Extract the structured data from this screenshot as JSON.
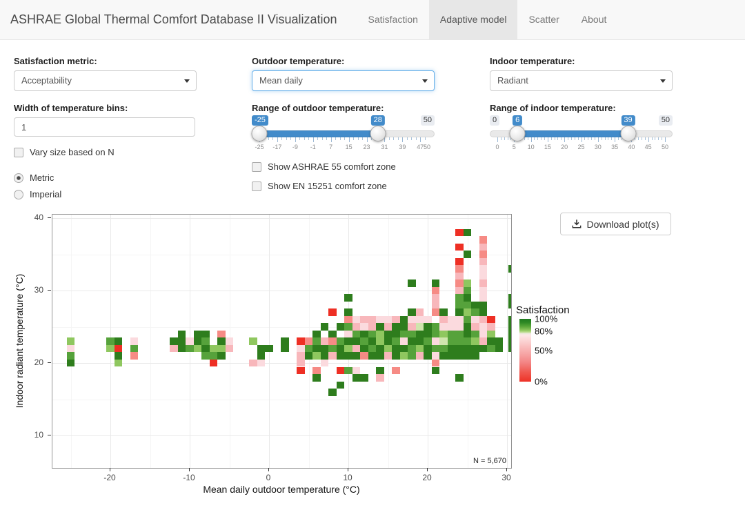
{
  "theme": {
    "accent": "#428bca",
    "navbar_bg": "#f8f8f8",
    "active_tab_bg": "#e7e7e7"
  },
  "navbar": {
    "brand": "ASHRAE Global Thermal Comfort Database II Visualization",
    "tabs": [
      {
        "label": "Satisfaction",
        "active": false
      },
      {
        "label": "Adaptive model",
        "active": true
      },
      {
        "label": "Scatter",
        "active": false
      },
      {
        "label": "About",
        "active": false
      }
    ]
  },
  "controls": {
    "satisfaction_metric": {
      "label": "Satisfaction metric:",
      "value": "Acceptability"
    },
    "bin_width": {
      "label": "Width of temperature bins:",
      "value": "1"
    },
    "vary_size": {
      "label": "Vary size based on N",
      "checked": false
    },
    "units": {
      "options": [
        {
          "label": "Metric",
          "selected": true
        },
        {
          "label": "Imperial",
          "selected": false
        }
      ]
    },
    "outdoor_temp": {
      "label": "Outdoor temperature:",
      "value": "Mean daily",
      "focused": true
    },
    "outdoor_range": {
      "label": "Range of outdoor temperature:",
      "min": -25,
      "max": 50,
      "from": -25,
      "to": 28,
      "tick_labels": [
        -25,
        -17,
        -9,
        -1,
        7,
        15,
        23,
        31,
        39,
        47,
        50
      ],
      "minor_step": 2,
      "badges": [
        {
          "text": "-25",
          "type": "from",
          "value": -25
        },
        {
          "text": "28",
          "type": "from",
          "value": 28
        },
        {
          "text": "50",
          "type": "minmax",
          "value": 50
        }
      ]
    },
    "ashrae_zone": {
      "label": "Show ASHRAE 55 comfort zone",
      "checked": false
    },
    "en_zone": {
      "label": "Show EN 15251 comfort zone",
      "checked": false
    },
    "indoor_temp": {
      "label": "Indoor temperature:",
      "value": "Radiant",
      "focused": false
    },
    "indoor_range": {
      "label": "Range of indoor temperature:",
      "min": 0,
      "max": 50,
      "from": 6,
      "to": 39,
      "tick_labels": [
        0,
        5,
        10,
        15,
        20,
        25,
        30,
        35,
        40,
        45,
        50
      ],
      "minor_step": 1,
      "badges": [
        {
          "text": "0",
          "type": "minmax",
          "value": 0
        },
        {
          "text": "6",
          "type": "from",
          "value": 6
        },
        {
          "text": "39",
          "type": "from",
          "value": 39
        },
        {
          "text": "50",
          "type": "minmax",
          "value": 50
        }
      ]
    }
  },
  "download_button": {
    "label": "Download plot(s)"
  },
  "plot": {
    "n_label": "N = 5,670"
  },
  "chart_data": {
    "type": "heatmap",
    "xlabel": "Mean daily outdoor temperature (°C)",
    "ylabel": "Indoor radiant temperature (°C)",
    "xlim": [
      -27.3,
      30.5
    ],
    "ylim": [
      5.5,
      40.5
    ],
    "x_ticks": [
      -20,
      -10,
      0,
      10,
      20,
      30
    ],
    "y_ticks": [
      40,
      30,
      20,
      10
    ],
    "x_minor": [
      -25,
      -15,
      -5,
      5,
      15,
      25
    ],
    "y_minor": [
      15,
      25,
      35
    ],
    "bin_width_c": 1,
    "n_total": "5,670",
    "legend": {
      "title": "Satisfaction",
      "stops": [
        {
          "label": "100%",
          "pos": 0.0
        },
        {
          "label": "80%",
          "pos": 0.2
        },
        {
          "label": "50%",
          "pos": 0.51
        },
        {
          "label": "0%",
          "pos": 1.0
        }
      ]
    },
    "color_map": {
      "dg": "#2e7d1d",
      "g": "#56a23b",
      "lg": "#8fc75f",
      "vlg": "#cfe5ad",
      "pp": "#fbdade",
      "pk": "#f8b7bb",
      "sal": "#f68b85",
      "red": "#ee2f24"
    },
    "color_meaning": {
      "dg": "~100% satisfaction",
      "g": "~90%",
      "lg": "~80%",
      "vlg": "~78%",
      "pp": "~70%",
      "pk": "~55%",
      "sal": "~30%",
      "red": "~0%"
    },
    "tiles": [
      [
        -25,
        23,
        "lg"
      ],
      [
        -25,
        22,
        "pp"
      ],
      [
        -25,
        21,
        "g"
      ],
      [
        -25,
        20,
        "dg"
      ],
      [
        -20,
        23,
        "g"
      ],
      [
        -20,
        22,
        "lg"
      ],
      [
        -19,
        23,
        "dg"
      ],
      [
        -19,
        22,
        "red"
      ],
      [
        -19,
        21,
        "dg"
      ],
      [
        -19,
        20,
        "lg"
      ],
      [
        -17,
        23,
        "pp"
      ],
      [
        -17,
        22,
        "g"
      ],
      [
        -17,
        21,
        "sal"
      ],
      [
        -12,
        23,
        "dg"
      ],
      [
        -12,
        22,
        "pk"
      ],
      [
        -11,
        24,
        "dg"
      ],
      [
        -11,
        23,
        "dg"
      ],
      [
        -11,
        22,
        "dg"
      ],
      [
        -10,
        23,
        "pp"
      ],
      [
        -10,
        22,
        "g"
      ],
      [
        -9,
        24,
        "dg"
      ],
      [
        -9,
        23,
        "dg"
      ],
      [
        -9,
        22,
        "lg"
      ],
      [
        -8,
        24,
        "dg"
      ],
      [
        -8,
        23,
        "g"
      ],
      [
        -8,
        22,
        "dg"
      ],
      [
        -8,
        21,
        "g"
      ],
      [
        -7,
        22,
        "lg"
      ],
      [
        -7,
        21,
        "g"
      ],
      [
        -7,
        20,
        "red"
      ],
      [
        -6,
        24,
        "sal"
      ],
      [
        -6,
        23,
        "dg"
      ],
      [
        -6,
        22,
        "lg"
      ],
      [
        -6,
        21,
        "dg"
      ],
      [
        -5,
        23,
        "pp"
      ],
      [
        -5,
        22,
        "pk"
      ],
      [
        -2,
        23,
        "lg"
      ],
      [
        -2,
        20,
        "pk"
      ],
      [
        -1,
        22,
        "dg"
      ],
      [
        -1,
        21,
        "dg"
      ],
      [
        -1,
        20,
        "pp"
      ],
      [
        0,
        22,
        "dg"
      ],
      [
        2,
        23,
        "dg"
      ],
      [
        2,
        22,
        "dg"
      ],
      [
        4,
        23,
        "red"
      ],
      [
        4,
        22,
        "pp"
      ],
      [
        4,
        21,
        "pk"
      ],
      [
        4,
        20,
        "pk"
      ],
      [
        4,
        19,
        "red"
      ],
      [
        5,
        23,
        "sal"
      ],
      [
        5,
        22,
        "g"
      ],
      [
        5,
        21,
        "dg"
      ],
      [
        6,
        24,
        "dg"
      ],
      [
        6,
        23,
        "g"
      ],
      [
        6,
        22,
        "dg"
      ],
      [
        6,
        21,
        "lg"
      ],
      [
        6,
        19,
        "sal"
      ],
      [
        6,
        18,
        "dg"
      ],
      [
        7,
        25,
        "dg"
      ],
      [
        7,
        23,
        "pk"
      ],
      [
        7,
        22,
        "dg"
      ],
      [
        7,
        21,
        "dg"
      ],
      [
        7,
        20,
        "pp"
      ],
      [
        8,
        27,
        "red"
      ],
      [
        8,
        24,
        "dg"
      ],
      [
        8,
        23,
        "sal"
      ],
      [
        8,
        22,
        "g"
      ],
      [
        8,
        21,
        "pk"
      ],
      [
        8,
        16,
        "dg"
      ],
      [
        9,
        25,
        "dg"
      ],
      [
        9,
        23,
        "g"
      ],
      [
        9,
        22,
        "dg"
      ],
      [
        9,
        21,
        "dg"
      ],
      [
        9,
        19,
        "red"
      ],
      [
        9,
        17,
        "dg"
      ],
      [
        10,
        29,
        "dg"
      ],
      [
        10,
        27,
        "dg"
      ],
      [
        10,
        26,
        "sal"
      ],
      [
        10,
        25,
        "g"
      ],
      [
        10,
        24,
        "pp"
      ],
      [
        10,
        23,
        "dg"
      ],
      [
        10,
        22,
        "lg"
      ],
      [
        10,
        21,
        "dg"
      ],
      [
        10,
        19,
        "g"
      ],
      [
        11,
        26,
        "pp"
      ],
      [
        11,
        25,
        "pk"
      ],
      [
        11,
        24,
        "g"
      ],
      [
        11,
        23,
        "dg"
      ],
      [
        11,
        22,
        "pk"
      ],
      [
        11,
        21,
        "dg"
      ],
      [
        11,
        19,
        "pp"
      ],
      [
        11,
        18,
        "dg"
      ],
      [
        12,
        26,
        "pk"
      ],
      [
        12,
        25,
        "pp"
      ],
      [
        12,
        24,
        "dg"
      ],
      [
        12,
        23,
        "g"
      ],
      [
        12,
        22,
        "dg"
      ],
      [
        12,
        21,
        "sal"
      ],
      [
        12,
        18,
        "dg"
      ],
      [
        13,
        26,
        "pk"
      ],
      [
        13,
        25,
        "pk"
      ],
      [
        13,
        24,
        "g"
      ],
      [
        13,
        23,
        "dg"
      ],
      [
        13,
        22,
        "g"
      ],
      [
        13,
        21,
        "dg"
      ],
      [
        14,
        26,
        "pp"
      ],
      [
        14,
        25,
        "dg"
      ],
      [
        14,
        24,
        "lg"
      ],
      [
        14,
        23,
        "lg"
      ],
      [
        14,
        22,
        "dg"
      ],
      [
        14,
        21,
        "dg"
      ],
      [
        14,
        19,
        "dg"
      ],
      [
        14,
        18,
        "pk"
      ],
      [
        15,
        26,
        "pp"
      ],
      [
        15,
        25,
        "pk"
      ],
      [
        15,
        24,
        "dg"
      ],
      [
        15,
        23,
        "dg"
      ],
      [
        15,
        22,
        "lg"
      ],
      [
        15,
        21,
        "pk"
      ],
      [
        16,
        26,
        "pk"
      ],
      [
        16,
        25,
        "dg"
      ],
      [
        16,
        24,
        "dg"
      ],
      [
        16,
        23,
        "g"
      ],
      [
        16,
        22,
        "dg"
      ],
      [
        16,
        21,
        "dg"
      ],
      [
        16,
        19,
        "sal"
      ],
      [
        17,
        26,
        "dg"
      ],
      [
        17,
        25,
        "dg"
      ],
      [
        17,
        24,
        "g"
      ],
      [
        17,
        23,
        "pp"
      ],
      [
        17,
        22,
        "dg"
      ],
      [
        17,
        21,
        "lg"
      ],
      [
        18,
        31,
        "dg"
      ],
      [
        18,
        27,
        "dg"
      ],
      [
        18,
        26,
        "pp"
      ],
      [
        18,
        25,
        "pk"
      ],
      [
        18,
        24,
        "g"
      ],
      [
        18,
        23,
        "dg"
      ],
      [
        18,
        22,
        "g"
      ],
      [
        18,
        21,
        "g"
      ],
      [
        19,
        27,
        "pk"
      ],
      [
        19,
        26,
        "pp"
      ],
      [
        19,
        25,
        "vlg"
      ],
      [
        19,
        24,
        "dg"
      ],
      [
        19,
        23,
        "dg"
      ],
      [
        19,
        22,
        "lg"
      ],
      [
        19,
        21,
        "pk"
      ],
      [
        20,
        26,
        "pp"
      ],
      [
        20,
        25,
        "dg"
      ],
      [
        20,
        24,
        "dg"
      ],
      [
        20,
        23,
        "g"
      ],
      [
        20,
        22,
        "dg"
      ],
      [
        20,
        21,
        "dg"
      ],
      [
        21,
        31,
        "dg"
      ],
      [
        21,
        30,
        "sal"
      ],
      [
        21,
        29,
        "pk"
      ],
      [
        21,
        28,
        "pk"
      ],
      [
        21,
        27,
        "sal"
      ],
      [
        21,
        25,
        "g"
      ],
      [
        21,
        24,
        "g"
      ],
      [
        21,
        23,
        "pp"
      ],
      [
        21,
        22,
        "g"
      ],
      [
        21,
        21,
        "pp"
      ],
      [
        21,
        20,
        "sal"
      ],
      [
        21,
        19,
        "dg"
      ],
      [
        22,
        27,
        "dg"
      ],
      [
        22,
        26,
        "pk"
      ],
      [
        22,
        25,
        "pp"
      ],
      [
        22,
        24,
        "lg"
      ],
      [
        22,
        23,
        "vlg"
      ],
      [
        22,
        22,
        "g"
      ],
      [
        22,
        21,
        "dg"
      ],
      [
        23,
        26,
        "pp"
      ],
      [
        23,
        25,
        "pp"
      ],
      [
        23,
        24,
        "g"
      ],
      [
        23,
        23,
        "g"
      ],
      [
        23,
        22,
        "dg"
      ],
      [
        23,
        21,
        "dg"
      ],
      [
        24,
        38,
        "red"
      ],
      [
        24,
        36,
        "red"
      ],
      [
        24,
        34,
        "red"
      ],
      [
        24,
        33,
        "sal"
      ],
      [
        24,
        32,
        "pk"
      ],
      [
        24,
        31,
        "sal"
      ],
      [
        24,
        30,
        "pk"
      ],
      [
        24,
        29,
        "g"
      ],
      [
        24,
        28,
        "g"
      ],
      [
        24,
        27,
        "dg"
      ],
      [
        24,
        26,
        "pp"
      ],
      [
        24,
        25,
        "pp"
      ],
      [
        24,
        24,
        "g"
      ],
      [
        24,
        23,
        "g"
      ],
      [
        24,
        22,
        "dg"
      ],
      [
        24,
        21,
        "dg"
      ],
      [
        24,
        18,
        "dg"
      ],
      [
        25,
        38,
        "dg"
      ],
      [
        25,
        35,
        "dg"
      ],
      [
        25,
        31,
        "lg"
      ],
      [
        25,
        30,
        "g"
      ],
      [
        25,
        29,
        "dg"
      ],
      [
        25,
        28,
        "g"
      ],
      [
        25,
        27,
        "lg"
      ],
      [
        25,
        26,
        "g"
      ],
      [
        25,
        25,
        "dg"
      ],
      [
        25,
        24,
        "dg"
      ],
      [
        25,
        23,
        "g"
      ],
      [
        25,
        22,
        "dg"
      ],
      [
        25,
        21,
        "dg"
      ],
      [
        26,
        28,
        "dg"
      ],
      [
        26,
        27,
        "g"
      ],
      [
        26,
        26,
        "pp"
      ],
      [
        26,
        25,
        "pk"
      ],
      [
        26,
        24,
        "g"
      ],
      [
        26,
        23,
        "lg"
      ],
      [
        26,
        22,
        "dg"
      ],
      [
        26,
        21,
        "dg"
      ],
      [
        27,
        37,
        "sal"
      ],
      [
        27,
        36,
        "pk"
      ],
      [
        27,
        35,
        "sal"
      ],
      [
        27,
        34,
        "pk"
      ],
      [
        27,
        33,
        "pp"
      ],
      [
        27,
        32,
        "pp"
      ],
      [
        27,
        31,
        "pk"
      ],
      [
        27,
        30,
        "pp"
      ],
      [
        27,
        29,
        "pp"
      ],
      [
        27,
        28,
        "dg"
      ],
      [
        27,
        27,
        "dg"
      ],
      [
        27,
        26,
        "pk"
      ],
      [
        27,
        25,
        "pp"
      ],
      [
        27,
        24,
        "pp"
      ],
      [
        27,
        23,
        "pk"
      ],
      [
        27,
        22,
        "dg"
      ],
      [
        28,
        26,
        "red"
      ],
      [
        28,
        25,
        "pk"
      ],
      [
        28,
        24,
        "lg"
      ],
      [
        28,
        23,
        "dg"
      ],
      [
        28,
        22,
        "g"
      ],
      [
        29,
        23,
        "dg"
      ],
      [
        29,
        22,
        "dg"
      ],
      [
        30.7,
        33,
        "dg"
      ],
      [
        30.7,
        29,
        "dg"
      ],
      [
        30.7,
        28,
        "dg"
      ],
      [
        30.7,
        26,
        "dg"
      ],
      [
        30.7,
        25,
        "dg"
      ],
      [
        30.7,
        24,
        "dg"
      ],
      [
        30.7,
        23,
        "dg"
      ],
      [
        30.7,
        22,
        "dg"
      ]
    ]
  }
}
